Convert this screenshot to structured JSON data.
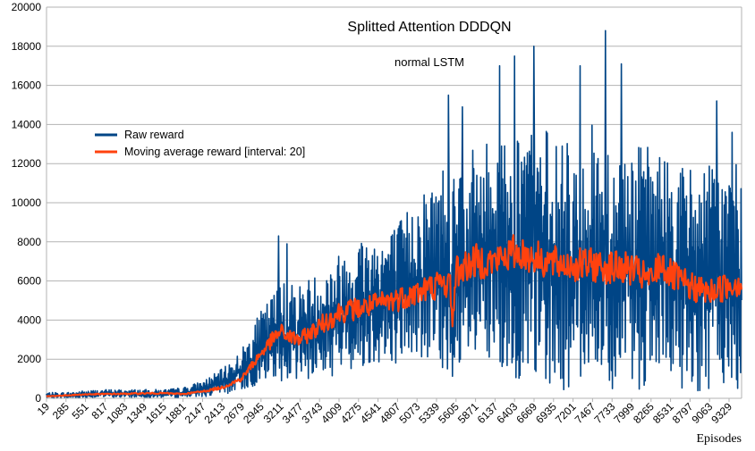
{
  "chart_data": {
    "type": "line",
    "title": "Splitted Attention DDDQN",
    "subtitle": "normal LSTM",
    "xlabel": "Episodes",
    "ylabel": "",
    "ylim": [
      0,
      20000
    ],
    "y_ticks": [
      0,
      2000,
      4000,
      6000,
      8000,
      10000,
      12000,
      14000,
      16000,
      18000,
      20000
    ],
    "x_tick_labels": [
      "19",
      "285",
      "551",
      "817",
      "1083",
      "1349",
      "1615",
      "1881",
      "2147",
      "2413",
      "2679",
      "2945",
      "3211",
      "3477",
      "3743",
      "4009",
      "4275",
      "4541",
      "4807",
      "5073",
      "5339",
      "5605",
      "5871",
      "6137",
      "6403",
      "6669",
      "6935",
      "7201",
      "7467",
      "7733",
      "7999",
      "8265",
      "8531",
      "8797",
      "9063",
      "9329"
    ],
    "x_range": [
      19,
      9500
    ],
    "grid": "horizontal",
    "legend_position": "upper-left",
    "series": [
      {
        "name": "Raw reward",
        "color": "#004586",
        "x": [
          19,
          285,
          551,
          817,
          1083,
          1349,
          1615,
          1881,
          2147,
          2413,
          2679,
          2945,
          3211,
          3477,
          3743,
          4009,
          4275,
          4541,
          4807,
          5073,
          5339,
          5500,
          5605,
          5871,
          6137,
          6403,
          6669,
          6935,
          7201,
          7467,
          7733,
          7999,
          8265,
          8531,
          8797,
          9063,
          9329,
          9500
        ],
        "low": [
          0,
          0,
          20,
          40,
          40,
          40,
          40,
          40,
          80,
          150,
          400,
          700,
          900,
          900,
          1000,
          1200,
          1500,
          1800,
          1800,
          2000,
          1500,
          200,
          1500,
          1200,
          1000,
          1000,
          800,
          500,
          400,
          500,
          500,
          400,
          500,
          400,
          400,
          300,
          300,
          300
        ],
        "high": [
          300,
          300,
          400,
          450,
          450,
          450,
          450,
          550,
          900,
          1500,
          2500,
          4500,
          6000,
          6000,
          6500,
          7500,
          8500,
          8500,
          9000,
          10500,
          11500,
          13000,
          11000,
          13000,
          13500,
          14000,
          14000,
          13500,
          13000,
          14000,
          13000,
          13000,
          13000,
          12500,
          12000,
          12000,
          12000,
          12000
        ],
        "peaks": [
          {
            "x": 3185,
            "y": 8300
          },
          {
            "x": 3300,
            "y": 7900
          },
          {
            "x": 5500,
            "y": 15500
          },
          {
            "x": 5690,
            "y": 14900
          },
          {
            "x": 6200,
            "y": 17000
          },
          {
            "x": 6403,
            "y": 17500
          },
          {
            "x": 6669,
            "y": 18000
          },
          {
            "x": 7300,
            "y": 17000
          },
          {
            "x": 7640,
            "y": 18800
          },
          {
            "x": 7860,
            "y": 17100
          },
          {
            "x": 9160,
            "y": 15200
          },
          {
            "x": 9370,
            "y": 13600
          }
        ]
      },
      {
        "name": "Moving average reward [interval: 20]",
        "color": "#ff420e",
        "x": [
          19,
          285,
          551,
          817,
          1083,
          1349,
          1615,
          1881,
          2147,
          2413,
          2679,
          2800,
          2945,
          3100,
          3211,
          3350,
          3477,
          3600,
          3743,
          3900,
          4009,
          4275,
          4541,
          4807,
          5073,
          5339,
          5520,
          5560,
          5605,
          5871,
          6137,
          6403,
          6669,
          6935,
          7201,
          7467,
          7733,
          7999,
          8265,
          8400,
          8531,
          8797,
          9063,
          9200,
          9329,
          9500
        ],
        "values": [
          100,
          150,
          200,
          220,
          230,
          250,
          260,
          220,
          350,
          550,
          1000,
          1600,
          2300,
          3000,
          3400,
          3100,
          3000,
          3300,
          3700,
          4100,
          4400,
          4600,
          4800,
          5100,
          5400,
          5800,
          5900,
          3900,
          6500,
          7000,
          7000,
          7500,
          7200,
          6900,
          6800,
          6800,
          6700,
          6600,
          6000,
          7000,
          6300,
          5700,
          5400,
          5600,
          5800,
          6000
        ]
      }
    ]
  }
}
